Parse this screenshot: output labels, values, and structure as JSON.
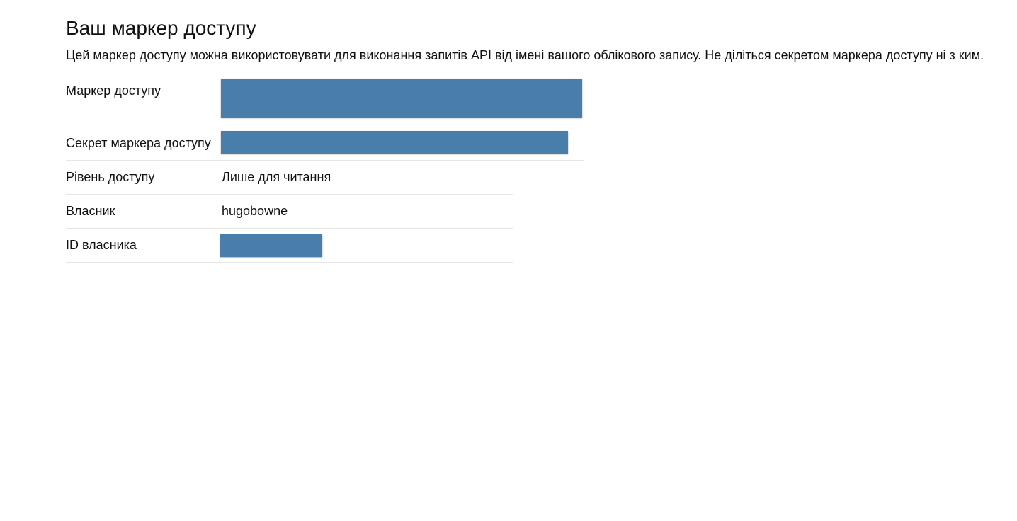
{
  "header": {
    "title": "Ваш маркер доступу",
    "description": "Цей маркер доступу можна використовувати для виконання запитів API від імені вашого облікового запису. Не діліться секретом маркера доступу ні з ким."
  },
  "fields": [
    {
      "label": "Маркер доступу"
    },
    {
      "label": "Секрет маркера доступу"
    },
    {
      "label": "Рівень доступу",
      "value": "Лише для читання"
    },
    {
      "label": "Власник",
      "value": "hugobowne"
    },
    {
      "label": "ID власника"
    }
  ]
}
